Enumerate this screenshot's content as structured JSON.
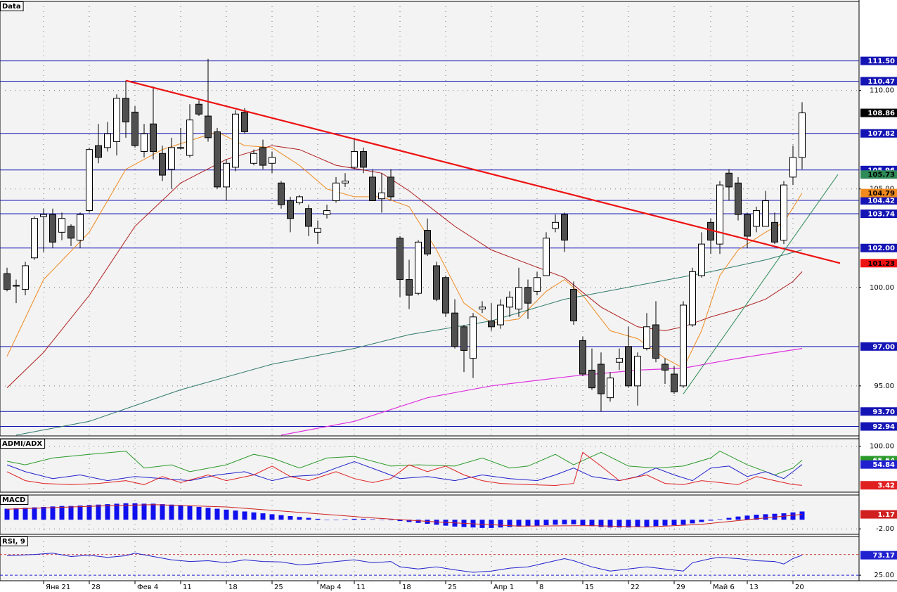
{
  "chart_data": [
    {
      "type": "candlestick",
      "title": "Data",
      "categories": [
        null,
        null,
        null,
        null,
        "Янв 21",
        null,
        null,
        null,
        null,
        "28",
        null,
        null,
        null,
        null,
        "Фев 4",
        null,
        null,
        null,
        null,
        "11",
        null,
        null,
        null,
        null,
        "18",
        null,
        null,
        null,
        null,
        "25",
        null,
        null,
        null,
        null,
        "Мар 4",
        null,
        null,
        null,
        "11",
        null,
        null,
        null,
        null,
        "18",
        null,
        null,
        null,
        null,
        "25",
        null,
        null,
        null,
        null,
        "Апр 1",
        null,
        null,
        null,
        null,
        "8",
        null,
        null,
        null,
        null,
        "15",
        null,
        null,
        null,
        null,
        "22",
        null,
        null,
        null,
        null,
        "29",
        null,
        null,
        null,
        "Май 6",
        null,
        null,
        null,
        "13",
        null,
        null,
        null,
        null,
        "20",
        null
      ],
      "open": [
        100.7,
        100.1,
        99.9,
        101.5,
        103.6,
        103.7,
        102.8,
        103.1,
        102.4,
        103.9,
        107.2,
        107.1,
        107.4,
        109.6,
        108.9,
        106.9,
        108.3,
        106.8,
        106.0,
        107.1,
        106.7,
        109.3,
        108.7,
        107.9,
        105.1,
        106.1,
        108.9,
        106.3,
        107.1,
        106.3,
        105.3,
        104.4,
        104.3,
        104.0,
        102.8,
        103.7,
        104.4,
        105.3,
        106.1,
        106.9,
        105.6,
        104.5,
        105.6,
        102.5,
        100.4,
        99.7,
        102.9,
        101.1,
        100.5,
        98.7,
        98.0,
        96.4,
        98.9,
        98.3,
        98.1,
        99.0,
        98.9,
        100.0,
        99.8,
        100.6,
        103.0,
        103.7,
        99.9,
        97.3,
        95.8,
        96.1,
        94.4,
        96.2,
        97.0,
        95.0,
        96.9,
        98.1,
        96.1,
        95.6,
        95.0,
        98.1,
        100.6,
        103.3,
        102.2,
        105.8,
        105.3,
        103.7,
        103.1,
        103.1,
        103.3,
        102.4,
        105.6,
        106.6
      ],
      "high": [
        101.0,
        100.4,
        101.3,
        103.6,
        104.0,
        104.0,
        103.8,
        103.2,
        103.8,
        107.1,
        108.3,
        108.4,
        109.8,
        110.5,
        109.2,
        108.3,
        110.2,
        107.2,
        107.6,
        108.1,
        109.3,
        109.5,
        111.6,
        108.1,
        106.5,
        109.0,
        109.1,
        107.0,
        107.5,
        106.9,
        105.4,
        104.6,
        104.7,
        104.2,
        103.4,
        104.2,
        105.6,
        105.8,
        107.6,
        107.1,
        106.0,
        105.8,
        106.0,
        102.6,
        101.4,
        102.4,
        103.5,
        101.3,
        100.6,
        99.4,
        98.1,
        98.7,
        99.3,
        99.2,
        99.4,
        99.8,
        101.0,
        100.4,
        100.8,
        102.8,
        103.7,
        103.8,
        100.3,
        97.5,
        96.9,
        96.7,
        95.7,
        96.9,
        98.0,
        96.7,
        98.7,
        99.3,
        96.4,
        96.0,
        99.3,
        101.0,
        102.8,
        103.5,
        105.4,
        106.0,
        105.6,
        103.8,
        104.1,
        104.9,
        103.8,
        105.4,
        107.2,
        109.4
      ],
      "low": [
        99.8,
        99.2,
        99.6,
        101.4,
        101.8,
        102.0,
        102.4,
        102.1,
        102.0,
        103.8,
        106.3,
        106.9,
        106.7,
        107.6,
        107.1,
        106.6,
        106.5,
        105.4,
        105.0,
        107.0,
        106.6,
        108.7,
        107.4,
        105.0,
        104.4,
        105.9,
        107.8,
        106.2,
        106.0,
        105.8,
        104.0,
        102.8,
        104.2,
        102.6,
        102.2,
        103.5,
        104.3,
        105.1,
        106.0,
        105.8,
        104.4,
        103.8,
        104.4,
        99.5,
        98.9,
        99.6,
        101.6,
        99.3,
        98.5,
        96.9,
        95.7,
        95.4,
        98.7,
        97.8,
        97.9,
        98.5,
        98.5,
        98.4,
        99.6,
        100.6,
        102.8,
        101.8,
        98.1,
        95.5,
        94.8,
        93.7,
        94.2,
        95.8,
        94.9,
        94.0,
        96.8,
        96.2,
        95.1,
        94.6,
        94.9,
        98.0,
        100.5,
        101.7,
        101.7,
        104.4,
        103.4,
        102.0,
        102.8,
        103.1,
        102.2,
        102.2,
        105.2,
        106.0
      ],
      "close": [
        99.9,
        100.1,
        101.1,
        103.5,
        103.7,
        102.3,
        103.5,
        102.5,
        103.7,
        107.0,
        106.6,
        107.8,
        109.6,
        108.4,
        107.2,
        107.8,
        106.9,
        105.7,
        107.1,
        107.1,
        108.5,
        108.8,
        107.6,
        105.1,
        106.3,
        108.8,
        107.9,
        106.8,
        106.2,
        106.6,
        104.2,
        103.5,
        104.6,
        103.1,
        103.0,
        103.9,
        105.3,
        105.4,
        106.9,
        106.1,
        104.4,
        104.8,
        104.6,
        100.4,
        99.6,
        102.3,
        101.7,
        99.4,
        98.7,
        97.0,
        96.8,
        98.5,
        99.0,
        98.0,
        99.1,
        99.5,
        100.0,
        99.2,
        100.5,
        102.5,
        103.3,
        102.4,
        98.3,
        95.6,
        94.9,
        94.6,
        95.4,
        96.4,
        95.0,
        96.5,
        98.0,
        96.4,
        95.8,
        94.7,
        99.1,
        100.8,
        102.2,
        102.4,
        105.2,
        105.1,
        103.7,
        102.6,
        103.9,
        104.4,
        102.3,
        105.2,
        106.6,
        108.86
      ],
      "up_color": "#ffffff",
      "down_color": "#505050",
      "last_color": "#000000",
      "ylim": [
        92.46,
        114.52
      ],
      "yticks": [
        {
          "value": 110,
          "label": "110.00"
        },
        {
          "value": 105,
          "label": "105.00"
        },
        {
          "value": 100,
          "label": "100.00"
        },
        {
          "value": 95,
          "label": "95.00"
        }
      ],
      "grid": true,
      "level_color": "#1414b4",
      "levels": [
        {
          "value": 111.5,
          "label": "111.50"
        },
        110.47,
        107.82,
        105.96,
        104.42,
        103.74,
        {
          "value": 102,
          "label": "102.00"
        },
        {
          "value": 97,
          "label": "97.00"
        },
        {
          "value": 93.7,
          "label": "93.70"
        },
        92.94
      ],
      "overlays": [
        {
          "color": "#f08a1e",
          "width": 1,
          "end_label": true,
          "x": [
            0,
            4,
            9,
            13,
            17,
            21,
            23,
            26,
            29,
            32,
            35,
            38,
            41,
            44,
            47,
            50,
            53,
            56,
            59,
            61,
            63,
            66,
            69,
            72,
            74,
            76,
            78,
            80,
            83,
            85,
            87
          ],
          "values": [
            96.5,
            100.4,
            102.8,
            106.0,
            107.0,
            107.6,
            107.9,
            107.2,
            107.1,
            106.2,
            105.0,
            104.6,
            104.6,
            104.1,
            101.9,
            99.2,
            98.2,
            98.4,
            99.8,
            100.4,
            99.6,
            97.8,
            97.4,
            96.4,
            95.9,
            97.8,
            100.6,
            101.9,
            102.8,
            103.3,
            104.79
          ]
        },
        {
          "color": "#b01c1c",
          "width": 1,
          "x": [
            0,
            4,
            9,
            14,
            19,
            24,
            29,
            32,
            36,
            41,
            44,
            49,
            53,
            57,
            61,
            65,
            69,
            72,
            74,
            77,
            80,
            83,
            86,
            87
          ],
          "values": [
            94.9,
            96.7,
            99.6,
            103.1,
            105.3,
            106.5,
            107.2,
            107.0,
            106.2,
            105.8,
            104.9,
            103.1,
            101.9,
            101.2,
            100.5,
            99.0,
            98.0,
            97.8,
            98.0,
            98.5,
            98.9,
            99.4,
            100.3,
            100.8
          ]
        },
        {
          "color": "#2f7a6a",
          "width": 1,
          "x": [
            1,
            9,
            19,
            29,
            38,
            44,
            53,
            61,
            69,
            77,
            83,
            87
          ],
          "values": [
            92.5,
            93.2,
            94.8,
            96.1,
            96.9,
            97.6,
            98.3,
            99.4,
            100.1,
            100.8,
            101.4,
            101.9
          ]
        },
        {
          "color": "#e030e0",
          "width": 1.2,
          "x": [
            30,
            38,
            46,
            53,
            62,
            69,
            74,
            80,
            87
          ],
          "values": [
            92.5,
            93.2,
            94.4,
            95.0,
            95.5,
            95.8,
            95.9,
            96.4,
            96.9
          ]
        },
        {
          "color": "#ee1111",
          "width": 2.2,
          "end_label": true,
          "x": [
            13,
            91.15
          ],
          "values": [
            110.5,
            101.23
          ]
        },
        {
          "color": "#2e8b57",
          "width": 1,
          "end_label": true,
          "x": [
            74,
            90.92
          ],
          "values": [
            94.59,
            105.73
          ]
        }
      ]
    },
    {
      "type": "line",
      "title": "ADMI/ADX",
      "ylim": [
        -13.6,
        118.6
      ],
      "yticks": [
        {
          "value": 100,
          "label": "100.00"
        }
      ],
      "grid": true,
      "series": [
        {
          "color": "#2a9a2a",
          "end_label": true,
          "x": [
            0,
            2,
            5,
            9,
            13,
            15,
            18,
            20,
            24,
            27,
            29,
            32,
            35,
            38,
            42,
            45,
            49,
            52,
            55,
            57,
            60,
            62,
            65,
            68,
            71,
            74,
            77,
            78,
            81,
            84,
            86,
            87
          ],
          "values": [
            63,
            54,
            71,
            80,
            88,
            46,
            54,
            37,
            54,
            80,
            71,
            46,
            71,
            75,
            51,
            54,
            51,
            71,
            46,
            51,
            80,
            54,
            85,
            51,
            46,
            51,
            71,
            88,
            54,
            29,
            46,
            65.64
          ]
        },
        {
          "color": "#2020d0",
          "end_label": true,
          "x": [
            0,
            2,
            5,
            8,
            11,
            14,
            17,
            20,
            23,
            26,
            29,
            31,
            34,
            36,
            38,
            41,
            43,
            46,
            49,
            52,
            55,
            58,
            60,
            62,
            64,
            67,
            69,
            71,
            73,
            75,
            77,
            79,
            81,
            83,
            85,
            86,
            87
          ],
          "values": [
            54,
            37,
            20,
            29,
            15,
            25,
            20,
            15,
            29,
            37,
            15,
            25,
            29,
            46,
            62,
            37,
            20,
            25,
            15,
            29,
            20,
            15,
            29,
            46,
            25,
            15,
            25,
            46,
            29,
            15,
            46,
            51,
            25,
            37,
            20,
            37,
            54.84
          ]
        },
        {
          "color": "#e02020",
          "end_label": true,
          "x": [
            0,
            2,
            4,
            7,
            10,
            13,
            15,
            17,
            19,
            22,
            24,
            27,
            29,
            31,
            33,
            36,
            38,
            40,
            42,
            44,
            46,
            48,
            50,
            52,
            54,
            57,
            60,
            62,
            63,
            65,
            67,
            70,
            72,
            74,
            76,
            78,
            80,
            82,
            84,
            86,
            87
          ],
          "values": [
            37,
            15,
            8,
            5,
            8,
            15,
            5,
            25,
            10,
            29,
            15,
            29,
            51,
            25,
            15,
            37,
            20,
            10,
            20,
            54,
            37,
            51,
            29,
            15,
            8,
            5,
            3,
            8,
            85,
            51,
            15,
            29,
            8,
            5,
            15,
            10,
            5,
            25,
            15,
            5,
            3.42
          ]
        }
      ]
    },
    {
      "type": "bar",
      "title": "MACD",
      "color": "#1010ee",
      "values": [
        2.4,
        2.5,
        2.6,
        2.7,
        2.8,
        2.9,
        3.0,
        3.0,
        3.1,
        3.2,
        3.3,
        3.4,
        3.5,
        3.6,
        3.6,
        3.5,
        3.5,
        3.4,
        3.3,
        3.2,
        3.0,
        2.8,
        2.6,
        2.4,
        2.2,
        2.0,
        1.8,
        1.6,
        1.4,
        1.2,
        1.0,
        0.8,
        0.6,
        0.4,
        0.2,
        0.0,
        0.0,
        0.1,
        0.2,
        0.2,
        0.1,
        0.0,
        -0.1,
        -0.3,
        -0.5,
        -0.7,
        -0.9,
        -1.1,
        -1.3,
        -1.5,
        -1.6,
        -1.7,
        -1.8,
        -1.8,
        -1.7,
        -1.6,
        -1.5,
        -1.4,
        -1.3,
        -1.2,
        -1.1,
        -1.0,
        -1.0,
        -1.2,
        -1.4,
        -1.6,
        -1.7,
        -1.7,
        -1.7,
        -1.6,
        -1.5,
        -1.4,
        -1.3,
        -1.2,
        -1.1,
        -0.8,
        -0.5,
        -0.2,
        0.1,
        0.4,
        0.7,
        0.9,
        1.1,
        1.2,
        1.3,
        1.4,
        1.6,
        1.8
      ],
      "ylim": [
        -3.2,
        5.41
      ],
      "yticks": [
        {
          "value": -2,
          "label": "-2.00"
        }
      ],
      "grid": true,
      "series": [
        {
          "color": "#d02020",
          "end_label": true,
          "x": [
            0,
            10,
            16,
            24,
            32,
            40,
            48,
            56,
            64,
            70,
            76,
            82,
            87
          ],
          "values": [
            2.3,
            3.0,
            3.3,
            2.8,
            1.6,
            0.4,
            -0.6,
            -1.4,
            -1.3,
            -1.6,
            -1.0,
            0.2,
            1.17
          ]
        }
      ]
    },
    {
      "type": "line",
      "title": "RSI, 9",
      "ylim": [
        11.7,
        118.3
      ],
      "yticks": [
        {
          "value": 25,
          "label": "25.00"
        }
      ],
      "grid": true,
      "grid_color": "#2020d0",
      "levels": [
        75
      ],
      "level_color": "#d04040",
      "series": [
        {
          "color": "#2020d0",
          "end_label": true,
          "x": [
            0,
            3,
            5,
            7,
            9,
            11,
            13,
            14,
            16,
            18,
            20,
            22,
            24,
            26,
            28,
            30,
            32,
            34,
            36,
            38,
            40,
            42,
            43,
            45,
            47,
            49,
            51,
            53,
            55,
            57,
            59,
            61,
            62,
            64,
            66,
            68,
            70,
            72,
            74,
            75,
            77,
            78,
            80,
            82,
            84,
            85,
            86,
            87
          ],
          "values": [
            72,
            75,
            78,
            70,
            73,
            68,
            72,
            78,
            70,
            62,
            58,
            60,
            55,
            62,
            58,
            57,
            50,
            53,
            58,
            62,
            55,
            58,
            45,
            40,
            45,
            38,
            32,
            35,
            42,
            45,
            55,
            65,
            60,
            45,
            35,
            40,
            45,
            40,
            35,
            55,
            65,
            68,
            65,
            60,
            58,
            52,
            65,
            73.17
          ]
        }
      ]
    }
  ]
}
